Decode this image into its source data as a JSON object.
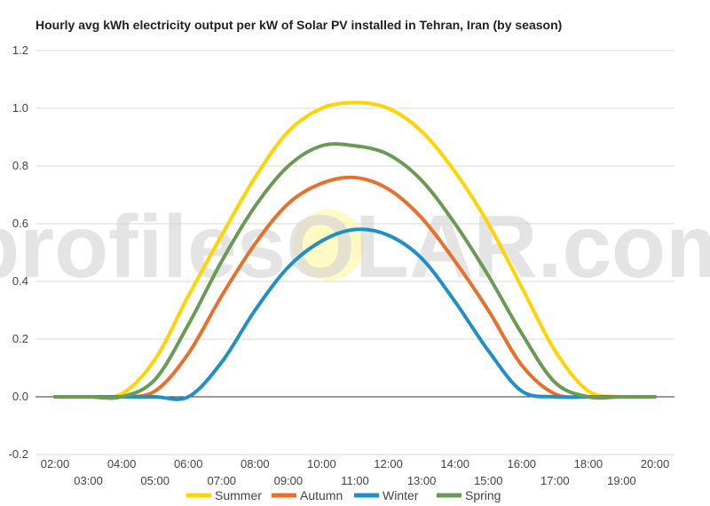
{
  "chart_data": {
    "type": "line",
    "title": "Hourly avg kWh electricity output per kW of Solar PV installed in Tehran, Iran (by season)",
    "watermark": {
      "text_left": "profilesOLAR.com"
    },
    "ylim": [
      -0.2,
      1.2
    ],
    "yticks": [
      "-0.2",
      "0.0",
      "0.2",
      "0.4",
      "0.6",
      "0.8",
      "1.0",
      "1.2"
    ],
    "x": [
      "02:00",
      "03:00",
      "04:00",
      "05:00",
      "06:00",
      "07:00",
      "08:00",
      "09:00",
      "10:00",
      "11:00",
      "12:00",
      "13:00",
      "14:00",
      "15:00",
      "16:00",
      "17:00",
      "18:00",
      "19:00",
      "20:00"
    ],
    "legend_position": "bottom",
    "grid": true,
    "series": [
      {
        "name": "Summer",
        "color": "#ffd400",
        "values": [
          0.0,
          0.0,
          0.01,
          0.13,
          0.35,
          0.56,
          0.76,
          0.92,
          1.0,
          1.02,
          1.0,
          0.92,
          0.78,
          0.6,
          0.38,
          0.16,
          0.02,
          0.0,
          0.0
        ]
      },
      {
        "name": "Autumn",
        "color": "#e8702a",
        "values": [
          0.0,
          0.0,
          0.0,
          0.02,
          0.15,
          0.35,
          0.53,
          0.67,
          0.74,
          0.76,
          0.72,
          0.62,
          0.47,
          0.3,
          0.11,
          0.01,
          0.0,
          0.0,
          0.0
        ]
      },
      {
        "name": "Winter",
        "color": "#1f8fc8",
        "values": [
          0.0,
          0.0,
          0.0,
          0.0,
          0.0,
          0.12,
          0.3,
          0.45,
          0.54,
          0.58,
          0.56,
          0.48,
          0.33,
          0.16,
          0.02,
          0.0,
          0.0,
          0.0,
          0.0
        ]
      },
      {
        "name": "Spring",
        "color": "#6b9a54",
        "values": [
          0.0,
          0.0,
          0.0,
          0.06,
          0.25,
          0.47,
          0.66,
          0.8,
          0.87,
          0.87,
          0.84,
          0.75,
          0.6,
          0.42,
          0.22,
          0.05,
          0.0,
          0.0,
          0.0
        ]
      }
    ]
  }
}
